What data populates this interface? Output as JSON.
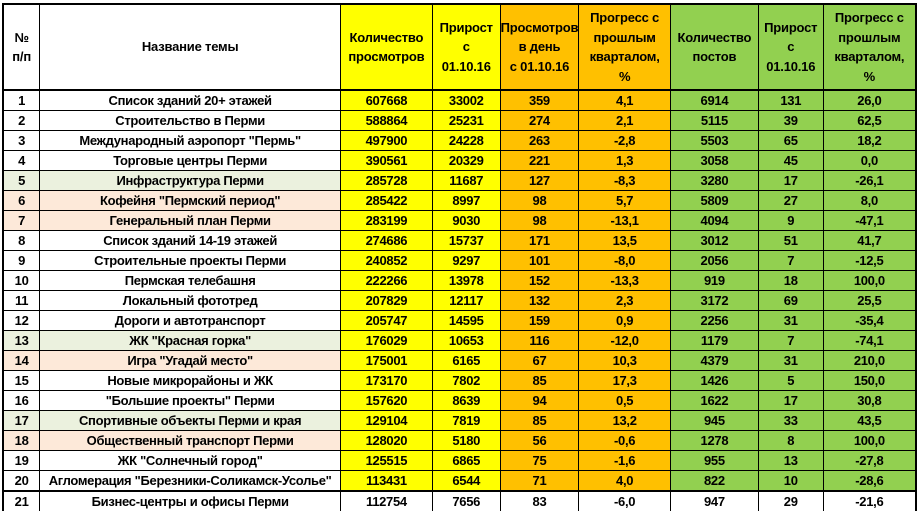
{
  "colors": {
    "views_block": "#FFFF00",
    "daily_block": "#FFC000",
    "posts_block": "#92D050",
    "row_tint_green": "#EBF1DE",
    "row_tint_peach": "#FDE9D9",
    "border": "#000000"
  },
  "chart_data": {
    "type": "table",
    "title": "",
    "columns": [
      {
        "label": "№\nп/п",
        "group": "plain"
      },
      {
        "label": "Название темы",
        "group": "plain"
      },
      {
        "label": "Количество\nпросмотров",
        "group": "views"
      },
      {
        "label": "Прирост\nс\n01.10.16",
        "group": "views"
      },
      {
        "label": "Просмотров\nв день\nс 01.10.16",
        "group": "daily"
      },
      {
        "label": "Прогресс с\nпрошлым\nкварталом,\n%",
        "group": "daily"
      },
      {
        "label": "Количество\nпостов",
        "group": "posts"
      },
      {
        "label": "Прирост\nс\n01.10.16",
        "group": "posts"
      },
      {
        "label": "Прогресс с\nпрошлым\nкварталом,\n%",
        "group": "posts"
      }
    ],
    "rows": [
      {
        "cells": [
          "1",
          "Список зданий 20+ этажей",
          "607668",
          "33002",
          "359",
          "4,1",
          "6914",
          "131",
          "26,0"
        ],
        "tint": "",
        "plain": false
      },
      {
        "cells": [
          "2",
          "Строительство в Перми",
          "588864",
          "25231",
          "274",
          "2,1",
          "5115",
          "39",
          "62,5"
        ],
        "tint": "",
        "plain": false
      },
      {
        "cells": [
          "3",
          "Международный аэропорт \"Пермь\"",
          "497900",
          "24228",
          "263",
          "-2,8",
          "5503",
          "65",
          "18,2"
        ],
        "tint": "",
        "plain": false
      },
      {
        "cells": [
          "4",
          "Торговые центры Перми",
          "390561",
          "20329",
          "221",
          "1,3",
          "3058",
          "45",
          "0,0"
        ],
        "tint": "",
        "plain": false
      },
      {
        "cells": [
          "5",
          "Инфраструктура Перми",
          "285728",
          "11687",
          "127",
          "-8,3",
          "3280",
          "17",
          "-26,1"
        ],
        "tint": "green",
        "plain": false
      },
      {
        "cells": [
          "6",
          "Кофейня \"Пермский период\"",
          "285422",
          "8997",
          "98",
          "5,7",
          "5809",
          "27",
          "8,0"
        ],
        "tint": "peach",
        "plain": false
      },
      {
        "cells": [
          "7",
          "Генеральный план Перми",
          "283199",
          "9030",
          "98",
          "-13,1",
          "4094",
          "9",
          "-47,1"
        ],
        "tint": "peach",
        "plain": false
      },
      {
        "cells": [
          "8",
          "Список зданий 14-19 этажей",
          "274686",
          "15737",
          "171",
          "13,5",
          "3012",
          "51",
          "41,7"
        ],
        "tint": "",
        "plain": false
      },
      {
        "cells": [
          "9",
          "Строительные проекты Перми",
          "240852",
          "9297",
          "101",
          "-8,0",
          "2056",
          "7",
          "-12,5"
        ],
        "tint": "",
        "plain": false
      },
      {
        "cells": [
          "10",
          "Пермская телебашня",
          "222266",
          "13978",
          "152",
          "-13,3",
          "919",
          "18",
          "100,0"
        ],
        "tint": "",
        "plain": false
      },
      {
        "cells": [
          "11",
          "Локальный фототред",
          "207829",
          "12117",
          "132",
          "2,3",
          "3172",
          "69",
          "25,5"
        ],
        "tint": "",
        "plain": false
      },
      {
        "cells": [
          "12",
          "Дороги и автотранспорт",
          "205747",
          "14595",
          "159",
          "0,9",
          "2256",
          "31",
          "-35,4"
        ],
        "tint": "",
        "plain": false
      },
      {
        "cells": [
          "13",
          "ЖК \"Красная горка\"",
          "176029",
          "10653",
          "116",
          "-12,0",
          "1179",
          "7",
          "-74,1"
        ],
        "tint": "green",
        "plain": false
      },
      {
        "cells": [
          "14",
          "Игра \"Угадай место\"",
          "175001",
          "6165",
          "67",
          "10,3",
          "4379",
          "31",
          "210,0"
        ],
        "tint": "peach",
        "plain": false
      },
      {
        "cells": [
          "15",
          "Новые микрорайоны и ЖК",
          "173170",
          "7802",
          "85",
          "17,3",
          "1426",
          "5",
          "150,0"
        ],
        "tint": "",
        "plain": false
      },
      {
        "cells": [
          "16",
          "\"Большие проекты\" Перми",
          "157620",
          "8639",
          "94",
          "0,5",
          "1622",
          "17",
          "30,8"
        ],
        "tint": "",
        "plain": false
      },
      {
        "cells": [
          "17",
          "Спортивные объекты Перми и края",
          "129104",
          "7819",
          "85",
          "13,2",
          "945",
          "33",
          "43,5"
        ],
        "tint": "green",
        "plain": false
      },
      {
        "cells": [
          "18",
          "Общественный транспорт Перми",
          "128020",
          "5180",
          "56",
          "-0,6",
          "1278",
          "8",
          "100,0"
        ],
        "tint": "peach",
        "plain": false
      },
      {
        "cells": [
          "19",
          "ЖК \"Солнечный город\"",
          "125515",
          "6865",
          "75",
          "-1,6",
          "955",
          "13",
          "-27,8"
        ],
        "tint": "",
        "plain": false
      },
      {
        "cells": [
          "20",
          "Агломерация \"Березники-Соликамск-Усолье\"",
          "113431",
          "6544",
          "71",
          "4,0",
          "822",
          "10",
          "-28,6"
        ],
        "tint": "",
        "plain": false
      },
      {
        "cells": [
          "21",
          "Бизнес-центры и офисы Перми",
          "112754",
          "7656",
          "83",
          "-6,0",
          "947",
          "29",
          "-21,6"
        ],
        "tint": "",
        "plain": true
      }
    ]
  }
}
